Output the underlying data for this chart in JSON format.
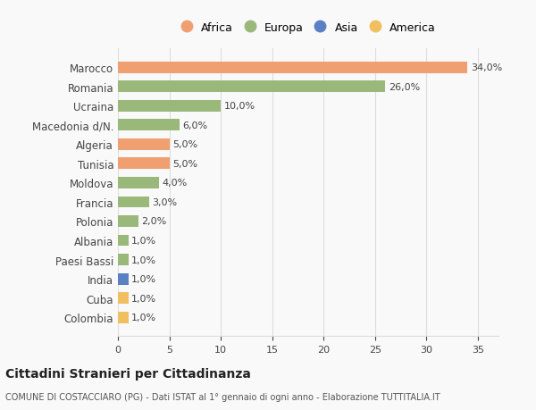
{
  "categories": [
    "Colombia",
    "Cuba",
    "India",
    "Paesi Bassi",
    "Albania",
    "Polonia",
    "Francia",
    "Moldova",
    "Tunisia",
    "Algeria",
    "Macedonia d/N.",
    "Ucraina",
    "Romania",
    "Marocco"
  ],
  "values": [
    1.0,
    1.0,
    1.0,
    1.0,
    1.0,
    2.0,
    3.0,
    4.0,
    5.0,
    5.0,
    6.0,
    10.0,
    26.0,
    34.0
  ],
  "labels": [
    "1,0%",
    "1,0%",
    "1,0%",
    "1,0%",
    "1,0%",
    "2,0%",
    "3,0%",
    "4,0%",
    "5,0%",
    "5,0%",
    "6,0%",
    "10,0%",
    "26,0%",
    "34,0%"
  ],
  "colors": [
    "#f0c060",
    "#f0c060",
    "#5b80c4",
    "#9ab87a",
    "#9ab87a",
    "#9ab87a",
    "#9ab87a",
    "#9ab87a",
    "#f0a070",
    "#f0a070",
    "#9ab87a",
    "#9ab87a",
    "#9ab87a",
    "#f0a070"
  ],
  "legend": [
    {
      "label": "Africa",
      "color": "#f0a070"
    },
    {
      "label": "Europa",
      "color": "#9ab87a"
    },
    {
      "label": "Asia",
      "color": "#5b80c4"
    },
    {
      "label": "America",
      "color": "#f0c060"
    }
  ],
  "title": "Cittadini Stranieri per Cittadinanza",
  "subtitle": "COMUNE DI COSTACCIARO (PG) - Dati ISTAT al 1° gennaio di ogni anno - Elaborazione TUTTITALIA.IT",
  "xlim": [
    0,
    37
  ],
  "xticks": [
    0,
    5,
    10,
    15,
    20,
    25,
    30,
    35
  ],
  "bg_color": "#f9f9f9",
  "grid_color": "#dddddd",
  "text_color": "#444444",
  "bar_height": 0.6
}
